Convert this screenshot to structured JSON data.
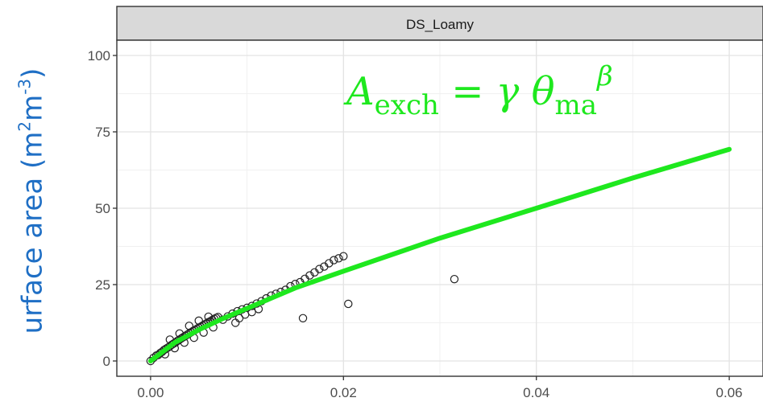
{
  "chart_data": {
    "type": "scatter",
    "panel_title": "DS_Loamy",
    "ylabel": "urface area (m",
    "ylabel_unit_sup1": "2",
    "ylabel_unit_mid": "m",
    "ylabel_unit_sup2": "-3",
    "ylabel_close": ")",
    "xlim": [
      -0.0035,
      0.0635
    ],
    "ylim": [
      -5,
      105
    ],
    "x_ticks": [
      0.0,
      0.02,
      0.04,
      0.06
    ],
    "x_tick_labels": [
      "0.00",
      "0.02",
      "0.04",
      "0.06"
    ],
    "y_ticks": [
      0,
      25,
      50,
      75,
      100
    ],
    "y_tick_labels": [
      "0",
      "25",
      "50",
      "75",
      "100"
    ],
    "grid": true,
    "point_series": {
      "marker": "open-circle",
      "color": "#222222",
      "points": [
        [
          0.0,
          0.0
        ],
        [
          0.0003,
          1.0
        ],
        [
          0.0006,
          1.8
        ],
        [
          0.0008,
          2.0
        ],
        [
          0.001,
          2.6
        ],
        [
          0.0012,
          3.0
        ],
        [
          0.0014,
          3.6
        ],
        [
          0.0016,
          4.0
        ],
        [
          0.0018,
          4.4
        ],
        [
          0.002,
          4.8
        ],
        [
          0.0022,
          5.3
        ],
        [
          0.0024,
          5.7
        ],
        [
          0.0026,
          6.1
        ],
        [
          0.0028,
          6.6
        ],
        [
          0.003,
          7.0
        ],
        [
          0.0032,
          7.4
        ],
        [
          0.0034,
          7.8
        ],
        [
          0.0036,
          8.2
        ],
        [
          0.0038,
          8.6
        ],
        [
          0.004,
          9.0
        ],
        [
          0.0042,
          9.4
        ],
        [
          0.0044,
          9.8
        ],
        [
          0.0046,
          10.1
        ],
        [
          0.0048,
          10.5
        ],
        [
          0.005,
          10.9
        ],
        [
          0.0052,
          11.2
        ],
        [
          0.0054,
          11.6
        ],
        [
          0.0056,
          12.0
        ],
        [
          0.0058,
          12.3
        ],
        [
          0.006,
          12.7
        ],
        [
          0.0062,
          13.0
        ],
        [
          0.0064,
          13.4
        ],
        [
          0.0066,
          13.8
        ],
        [
          0.0068,
          14.1
        ],
        [
          0.007,
          14.4
        ],
        [
          0.0015,
          2.2
        ],
        [
          0.0025,
          4.2
        ],
        [
          0.0035,
          6.0
        ],
        [
          0.0045,
          7.6
        ],
        [
          0.0055,
          9.3
        ],
        [
          0.0065,
          11.0
        ],
        [
          0.002,
          7.0
        ],
        [
          0.003,
          9.0
        ],
        [
          0.004,
          11.5
        ],
        [
          0.005,
          13.2
        ],
        [
          0.006,
          14.5
        ],
        [
          0.0075,
          13.5
        ],
        [
          0.008,
          14.6
        ],
        [
          0.0085,
          15.5
        ],
        [
          0.009,
          16.3
        ],
        [
          0.0095,
          16.9
        ],
        [
          0.01,
          17.4
        ],
        [
          0.0105,
          18.0
        ],
        [
          0.011,
          18.8
        ],
        [
          0.0115,
          19.6
        ],
        [
          0.012,
          20.5
        ],
        [
          0.0125,
          21.4
        ],
        [
          0.013,
          22.0
        ],
        [
          0.0135,
          22.6
        ],
        [
          0.014,
          23.3
        ],
        [
          0.0145,
          24.5
        ],
        [
          0.015,
          25.2
        ],
        [
          0.0155,
          25.8
        ],
        [
          0.016,
          26.9
        ],
        [
          0.0165,
          28.0
        ],
        [
          0.017,
          29.0
        ],
        [
          0.0175,
          30.1
        ],
        [
          0.018,
          30.9
        ],
        [
          0.0185,
          32.0
        ],
        [
          0.019,
          33.0
        ],
        [
          0.0195,
          33.6
        ],
        [
          0.02,
          34.3
        ],
        [
          0.0158,
          14.0
        ],
        [
          0.0205,
          18.7
        ],
        [
          0.0315,
          26.8
        ],
        [
          0.0088,
          12.5
        ],
        [
          0.0092,
          14.0
        ],
        [
          0.0098,
          15.2
        ],
        [
          0.0105,
          16.0
        ],
        [
          0.0112,
          17.0
        ]
      ]
    },
    "fit_series": {
      "color": "#1ee81e",
      "x": [
        0.0,
        0.0025,
        0.005,
        0.0075,
        0.01,
        0.015,
        0.02,
        0.03,
        0.04,
        0.05,
        0.06
      ],
      "y": [
        0.0,
        6.0,
        10.2,
        13.9,
        17.2,
        23.9,
        29.4,
        40.2,
        50.0,
        59.9,
        69.3
      ]
    },
    "annotation": {
      "lhs_symbol": "A",
      "lhs_sub": "exch",
      "equals": "=",
      "gamma": "γ",
      "theta": "θ",
      "theta_sub": "ma",
      "beta": "β",
      "color": "#1ee81e"
    }
  }
}
